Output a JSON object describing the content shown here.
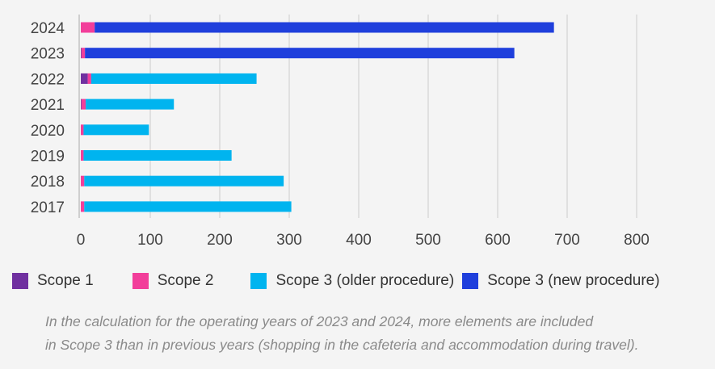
{
  "chart_data": {
    "type": "bar",
    "orientation": "horizontal",
    "stacked": true,
    "categories": [
      "2024",
      "2023",
      "2022",
      "2021",
      "2020",
      "2019",
      "2018",
      "2017"
    ],
    "series": [
      {
        "name": "Scope 1",
        "color": "#7030a0",
        "values": [
          0,
          1,
          10,
          1,
          0,
          0,
          0,
          0
        ]
      },
      {
        "name": "Scope 2",
        "color": "#f23e9a",
        "values": [
          20,
          5,
          5,
          6,
          4,
          4,
          5,
          5
        ]
      },
      {
        "name": "Scope 3 (older procedure)",
        "color": "#00b4ef",
        "values": [
          0,
          0,
          238,
          127,
          94,
          213,
          287,
          298
        ]
      },
      {
        "name": "Scope 3 (new procedure)",
        "color": "#1f3fdc",
        "values": [
          661,
          618,
          0,
          0,
          0,
          0,
          0,
          0
        ]
      }
    ],
    "xlim": [
      0,
      800
    ],
    "xticks": [
      "0",
      "100",
      "200",
      "300",
      "400",
      "500",
      "600",
      "700",
      "800"
    ],
    "grid": true,
    "legend": "bottom"
  },
  "note": [
    "In the calculation for the operating years of 2023 and 2024, more elements are included",
    "in Scope 3 than in previous years (shopping in the cafeteria and accommodation during travel)."
  ]
}
